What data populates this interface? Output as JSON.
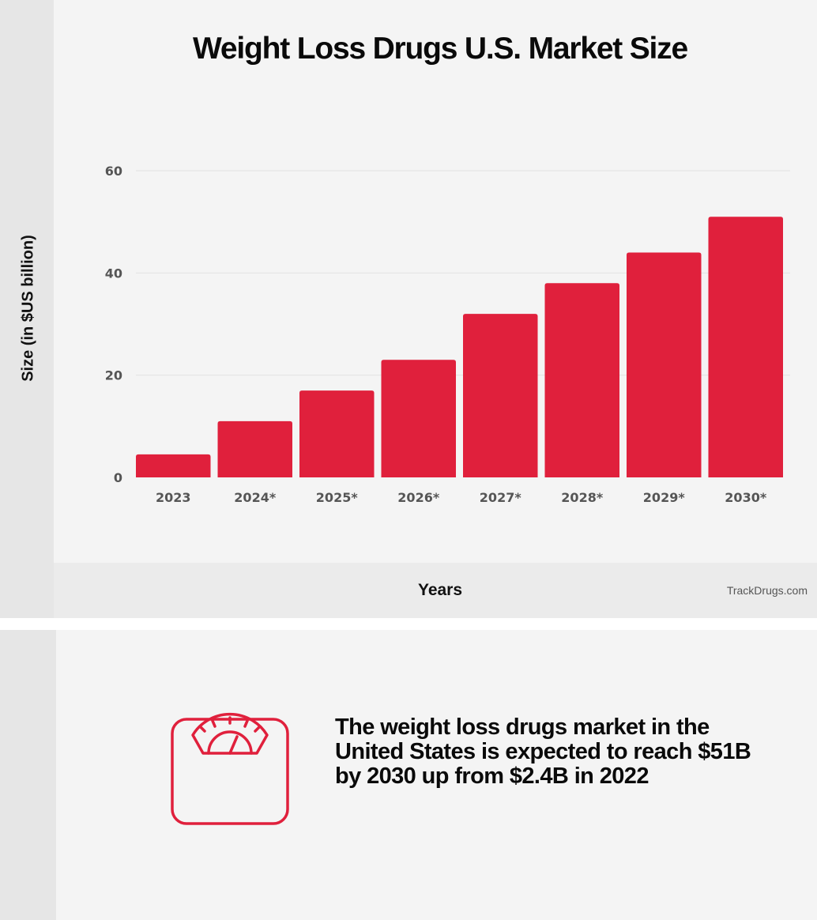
{
  "chart_data": {
    "type": "bar",
    "title": "Weight Loss Drugs U.S. Market Size",
    "xlabel": "Years",
    "ylabel": "Size (in $US billion)",
    "categories": [
      "2023",
      "2024*",
      "2025*",
      "2026*",
      "2027*",
      "2028*",
      "2029*",
      "2030*"
    ],
    "values": [
      4.5,
      11,
      17,
      23,
      32,
      38,
      44,
      51
    ],
    "ylim": [
      0,
      60
    ],
    "yticks": [
      "0",
      "20",
      "40",
      "60"
    ],
    "grid": true,
    "colors": {
      "bar": "#e0203c",
      "grid": "#e2e2e2"
    }
  },
  "credit": "TrackDrugs.com",
  "summary": {
    "text": "The weight loss drugs market in the United States is expected to reach $51B by 2030 up from $2.4B in 2022",
    "icon": "weighing-scale-icon",
    "accent": "#e0203c"
  }
}
